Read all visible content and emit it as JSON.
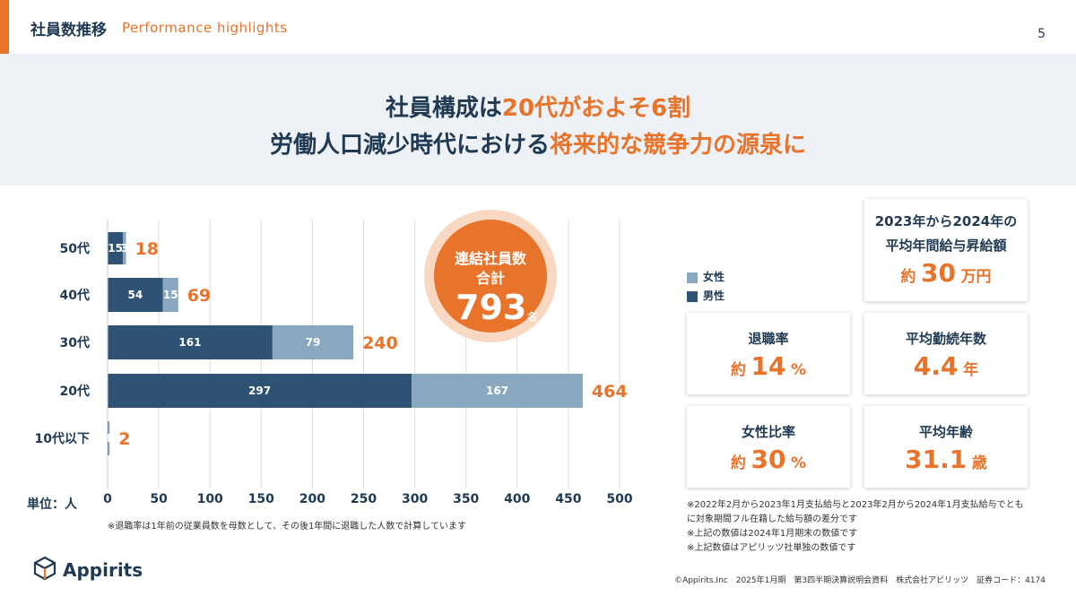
{
  "header": {
    "title": "社員数推移",
    "subtitle": "Performance highlights",
    "page": "5"
  },
  "headline": {
    "line1_a": "社員構成は",
    "line1_b": "20代がおよそ6割",
    "line2_a": "労働人口減少時代における",
    "line2_b": "将来的な競争力の源泉に"
  },
  "chart_data": {
    "type": "bar",
    "orientation": "horizontal",
    "stacked": true,
    "categories": [
      "50代",
      "40代",
      "30代",
      "20代",
      "10代以下"
    ],
    "series": [
      {
        "name": "男性",
        "values": [
          15,
          54,
          161,
          297,
          1
        ],
        "color": "#2d5273"
      },
      {
        "name": "女性",
        "values": [
          3,
          15,
          79,
          167,
          1
        ],
        "color": "#8aa7c0"
      }
    ],
    "totals": [
      18,
      69,
      240,
      464,
      2
    ],
    "segment_labels": [
      [
        "15",
        "3"
      ],
      [
        "54",
        "15"
      ],
      [
        "161",
        "79"
      ],
      [
        "297",
        "167"
      ],
      [
        "1",
        "1"
      ]
    ],
    "xticks": [
      0,
      50,
      100,
      150,
      200,
      250,
      300,
      350,
      400,
      450,
      500
    ],
    "xlim": [
      0,
      500
    ],
    "grid": true,
    "unit_label": "単位：人",
    "legend": [
      "女性",
      "男性"
    ],
    "legend_position": "right"
  },
  "total_circle": {
    "line1": "連結社員数",
    "line2": "合計",
    "value": "793",
    "unit": "名"
  },
  "cards": {
    "raise": {
      "title1": "2023年から2024年の",
      "title2": "平均年間給与昇給額",
      "prefix": "約",
      "value": "30",
      "unit": "万円"
    },
    "attrition": {
      "title": "退職率",
      "prefix": "約",
      "value": "14",
      "unit": "%"
    },
    "tenure": {
      "title": "平均勤続年数",
      "prefix": "",
      "value": "4.4",
      "unit": "年"
    },
    "female": {
      "title": "女性比率",
      "prefix": "約",
      "value": "30",
      "unit": "%"
    },
    "age": {
      "title": "平均年齢",
      "prefix": "",
      "value": "31.1",
      "unit": "歳"
    }
  },
  "notes": {
    "left": "※退職率は1年前の従業員数を母数として、その後1年間に退職した人数で計算しています",
    "right": [
      "※2022年2月から2023年1月支払給与と2023年2月から2024年1月支払給与でとも",
      "に対象期間フル在籍した給与額の差分です",
      "※上記の数値は2024年1月期末の数値です",
      "※上記数値はアピリッツ社単独の数値です"
    ]
  },
  "logo": {
    "text": "Appirits"
  },
  "footer": "©Appirits.Inc　2025年1月期　第3四半期決算説明会資料　株式会社アピリッツ　証券コード：4174",
  "colors": {
    "accent": "#e8732a",
    "navy": "#1f3a52",
    "male": "#2d5273",
    "female": "#8aa7c0"
  }
}
